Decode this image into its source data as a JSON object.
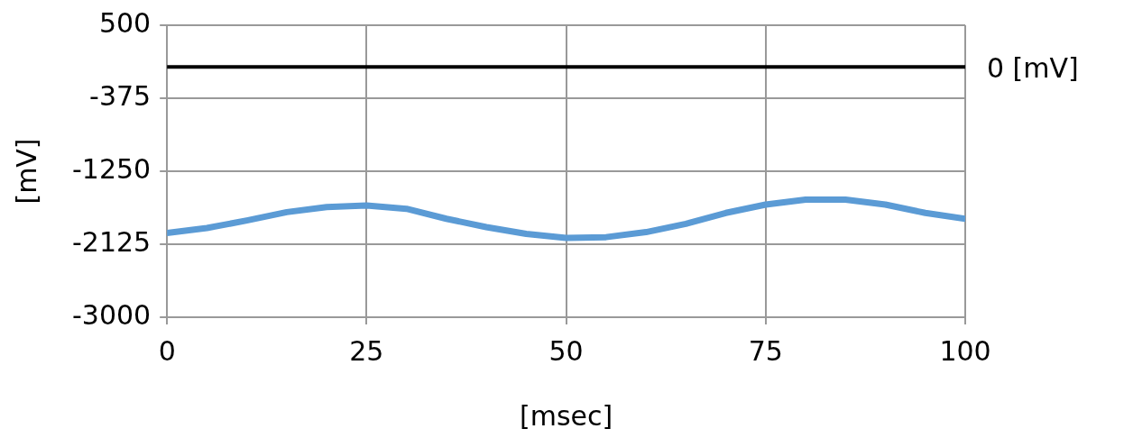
{
  "chart_data": {
    "type": "line",
    "xlabel": "[msec]",
    "ylabel": "[mV]",
    "x": [
      0,
      5,
      10,
      15,
      20,
      25,
      30,
      35,
      40,
      45,
      50,
      55,
      60,
      65,
      70,
      75,
      80,
      85,
      90,
      95,
      100
    ],
    "series": [
      {
        "color": "#5b9bd5",
        "values": [
          -1990,
          -1930,
          -1840,
          -1740,
          -1680,
          -1660,
          -1700,
          -1820,
          -1920,
          -2000,
          -2050,
          -2040,
          -1980,
          -1880,
          -1750,
          -1650,
          -1590,
          -1590,
          -1650,
          -1750,
          -1820
        ]
      }
    ],
    "xlim": [
      0,
      100
    ],
    "xticks": [
      0,
      25,
      50,
      75,
      100
    ],
    "ylim": [
      -3000,
      500
    ],
    "yticks": [
      -3000,
      -2125,
      -1250,
      -375,
      500
    ],
    "ref_lines": [
      {
        "axis": "y",
        "value": 0,
        "label": "0 [mV]",
        "color": "#000000"
      }
    ],
    "grid": true,
    "legend": false,
    "marker": "none",
    "line_style": "solid"
  }
}
